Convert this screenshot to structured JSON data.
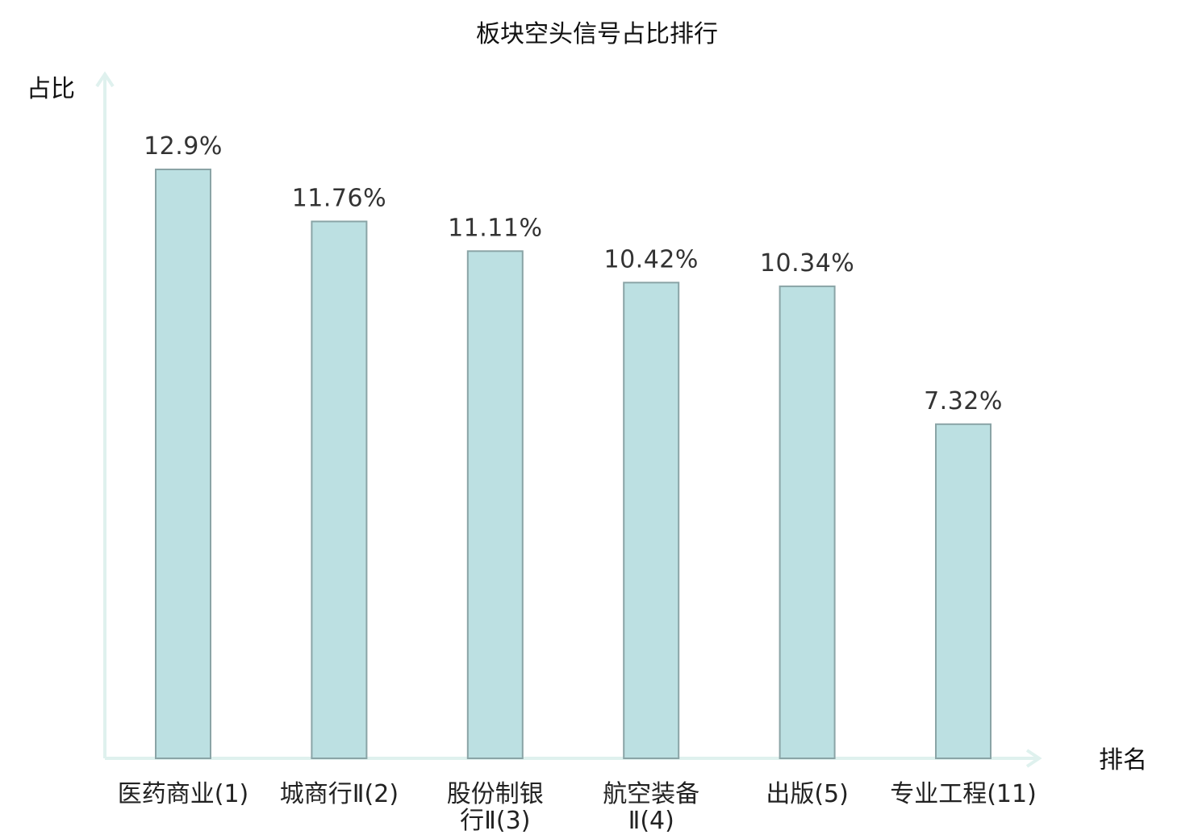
{
  "chart_data": {
    "type": "bar",
    "title": "板块空头信号占比排行",
    "ylabel": "占比",
    "xlabel": "排名",
    "categories": [
      {
        "lines": [
          "医药商业(1)"
        ],
        "highlight": false
      },
      {
        "lines": [
          "城商行Ⅱ(2)"
        ],
        "highlight": false
      },
      {
        "lines": [
          "股份制银",
          "行Ⅱ(3)"
        ],
        "highlight": false
      },
      {
        "lines": [
          "航空装备",
          "Ⅱ(4)"
        ],
        "highlight": false
      },
      {
        "lines": [
          "出版(5)"
        ],
        "highlight": false
      },
      {
        "lines": [
          "专业工程(11)"
        ],
        "highlight": true
      }
    ],
    "values": [
      12.9,
      11.76,
      11.11,
      10.42,
      10.34,
      7.32
    ],
    "value_labels": [
      "12.9%",
      "11.76%",
      "11.11%",
      "10.42%",
      "10.34%",
      "7.32%"
    ],
    "ylim": [
      0,
      14
    ],
    "grid": false,
    "legend": "none"
  },
  "colors": {
    "bar_fill": "#bce0e2",
    "bar_stroke": "#8aa4a6",
    "axis": "#dff1ee",
    "highlight_text": "#e02020",
    "text": "#222222"
  }
}
